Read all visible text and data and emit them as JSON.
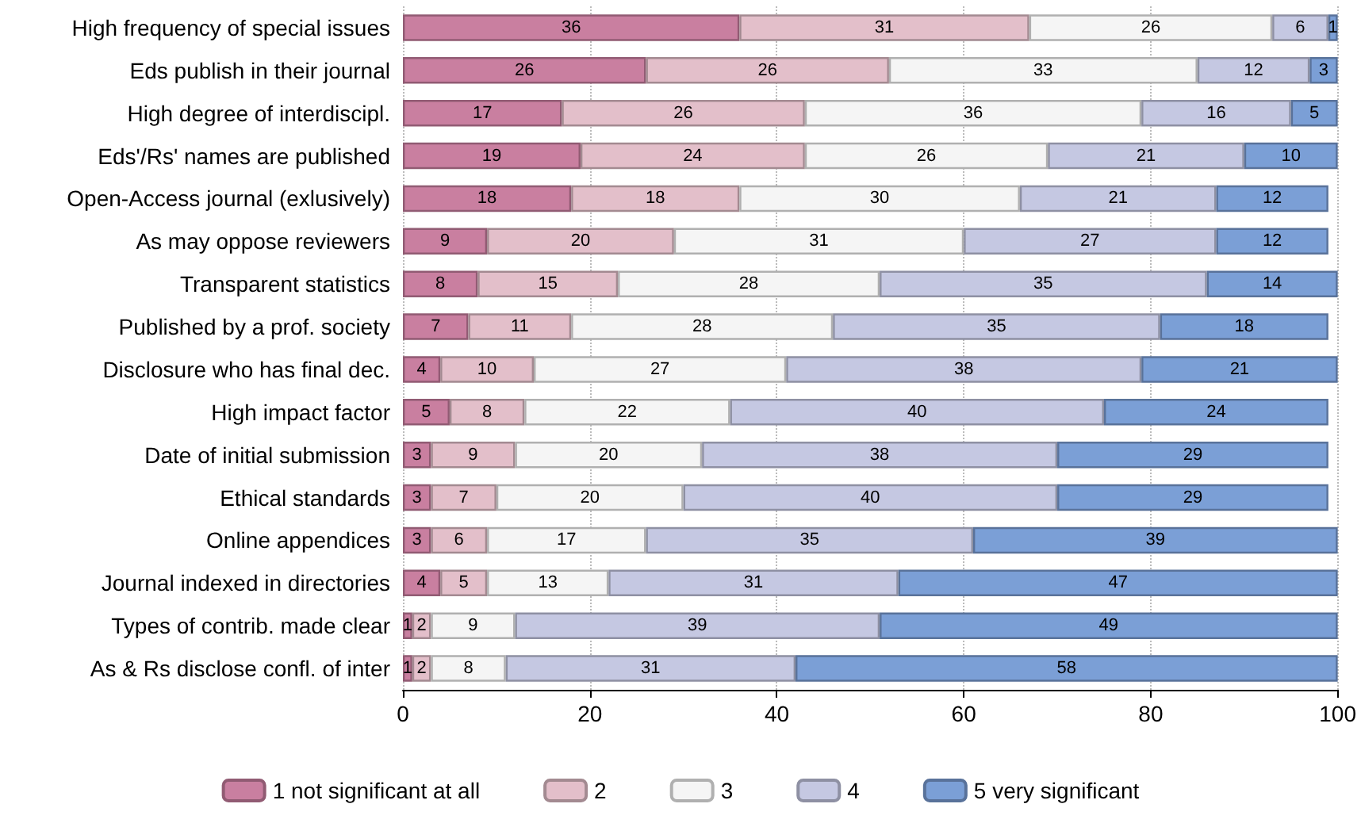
{
  "chart_data": {
    "type": "bar",
    "orientation": "horizontal",
    "stacked": true,
    "data_labels": true,
    "grid": "x",
    "legend": "bottom",
    "categories": [
      "High frequency of special issues",
      "Eds publish in their journal",
      "High degree of interdiscipl.",
      "Eds'/Rs' names are published",
      "Open-Access journal (exlusively)",
      "As may oppose reviewers",
      "Transparent statistics",
      "Published by a prof. society",
      "Disclosure who has final dec.",
      "High impact factor",
      "Date of initial submission",
      "Ethical standards",
      "Online appendices",
      "Journal indexed in directories",
      "Types of contrib. made clear",
      "As & Rs disclose confl. of inter"
    ],
    "xlim": [
      0,
      100
    ],
    "xticks": [
      0,
      20,
      40,
      60,
      80,
      100
    ],
    "series": [
      {
        "name": "1 not significant at all",
        "color": "#c97fa0",
        "values": [
          36,
          26,
          17,
          19,
          18,
          9,
          8,
          7,
          4,
          5,
          3,
          3,
          3,
          4,
          1,
          1
        ]
      },
      {
        "name": "2",
        "color": "#e3bfca",
        "values": [
          31,
          26,
          26,
          24,
          18,
          20,
          15,
          11,
          10,
          8,
          9,
          7,
          6,
          5,
          2,
          2
        ]
      },
      {
        "name": "3",
        "color": "#f5f5f5",
        "values": [
          26,
          33,
          36,
          26,
          30,
          31,
          28,
          28,
          27,
          22,
          20,
          20,
          17,
          13,
          9,
          8
        ]
      },
      {
        "name": "4",
        "color": "#c5c8e2",
        "values": [
          6,
          12,
          16,
          21,
          21,
          27,
          35,
          35,
          38,
          40,
          38,
          40,
          35,
          31,
          39,
          31
        ]
      },
      {
        "name": "5 very significant",
        "color": "#7b9fd6",
        "values": [
          1,
          3,
          5,
          10,
          12,
          12,
          14,
          18,
          21,
          24,
          29,
          29,
          39,
          47,
          49,
          58
        ]
      }
    ]
  }
}
